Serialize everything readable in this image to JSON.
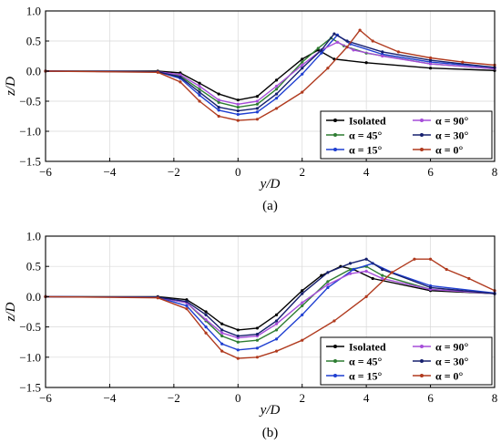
{
  "chart_data": [
    {
      "type": "line",
      "panel_label": "(a)",
      "xlabel": "y/D",
      "ylabel": "z/D",
      "xlim": [
        -6,
        8
      ],
      "ylim": [
        -1.5,
        1.0
      ],
      "xticks": [
        "−6",
        "−4",
        "−2",
        "0",
        "2",
        "4",
        "6",
        "8"
      ],
      "yticks": [
        "1.0",
        "0.5",
        "0.0",
        "−0.5",
        "−1.0",
        "−1.5"
      ],
      "grid": true,
      "legend_position": "bottom-right",
      "legend": [
        "Isolated",
        "α = 45°",
        "α = 15°",
        "α = 90°",
        "α = 30°",
        "α =   0°"
      ],
      "series": [
        {
          "name": "Isolated",
          "color": "#000000",
          "points": [
            [
              -6,
              0
            ],
            [
              -2.5,
              0
            ],
            [
              -1.8,
              -0.03
            ],
            [
              -1.2,
              -0.2
            ],
            [
              -0.6,
              -0.38
            ],
            [
              0,
              -0.48
            ],
            [
              0.6,
              -0.42
            ],
            [
              1.2,
              -0.15
            ],
            [
              2.0,
              0.2
            ],
            [
              2.5,
              0.35
            ],
            [
              3.0,
              0.2
            ],
            [
              4.0,
              0.14
            ],
            [
              6.0,
              0.05
            ],
            [
              8.0,
              0.01
            ]
          ]
        },
        {
          "name": "α = 45°",
          "color": "#2e7d32",
          "points": [
            [
              -6,
              0
            ],
            [
              -2.5,
              -0.01
            ],
            [
              -1.8,
              -0.08
            ],
            [
              -1.2,
              -0.3
            ],
            [
              -0.6,
              -0.52
            ],
            [
              0,
              -0.6
            ],
            [
              0.6,
              -0.55
            ],
            [
              1.2,
              -0.3
            ],
            [
              2.0,
              0.15
            ],
            [
              2.5,
              0.38
            ],
            [
              2.9,
              0.55
            ],
            [
              3.3,
              0.42
            ],
            [
              4.0,
              0.3
            ],
            [
              6.0,
              0.12
            ],
            [
              8.0,
              0.04
            ]
          ]
        },
        {
          "name": "α = 15°",
          "color": "#1f3fd1",
          "points": [
            [
              -6,
              0
            ],
            [
              -2.5,
              -0.01
            ],
            [
              -1.8,
              -0.12
            ],
            [
              -1.2,
              -0.4
            ],
            [
              -0.6,
              -0.65
            ],
            [
              0,
              -0.72
            ],
            [
              0.6,
              -0.68
            ],
            [
              1.2,
              -0.45
            ],
            [
              2.0,
              -0.05
            ],
            [
              2.6,
              0.3
            ],
            [
              3.1,
              0.6
            ],
            [
              3.5,
              0.45
            ],
            [
              4.5,
              0.28
            ],
            [
              6.0,
              0.15
            ],
            [
              8.0,
              0.06
            ]
          ]
        },
        {
          "name": "α = 90°",
          "color": "#a64dd9",
          "points": [
            [
              -6,
              0
            ],
            [
              -2.5,
              -0.01
            ],
            [
              -1.8,
              -0.06
            ],
            [
              -1.2,
              -0.25
            ],
            [
              -0.6,
              -0.48
            ],
            [
              0,
              -0.55
            ],
            [
              0.6,
              -0.5
            ],
            [
              1.2,
              -0.25
            ],
            [
              2.0,
              0.1
            ],
            [
              2.6,
              0.35
            ],
            [
              3.1,
              0.48
            ],
            [
              3.6,
              0.35
            ],
            [
              4.5,
              0.25
            ],
            [
              6.0,
              0.12
            ],
            [
              8.0,
              0.04
            ]
          ]
        },
        {
          "name": "α = 30°",
          "color": "#16206e",
          "points": [
            [
              -6,
              0
            ],
            [
              -2.5,
              -0.01
            ],
            [
              -1.8,
              -0.1
            ],
            [
              -1.2,
              -0.35
            ],
            [
              -0.6,
              -0.6
            ],
            [
              0,
              -0.66
            ],
            [
              0.6,
              -0.62
            ],
            [
              1.2,
              -0.38
            ],
            [
              2.0,
              0.05
            ],
            [
              2.6,
              0.35
            ],
            [
              3.0,
              0.62
            ],
            [
              3.4,
              0.5
            ],
            [
              4.5,
              0.32
            ],
            [
              6.0,
              0.18
            ],
            [
              8.0,
              0.06
            ]
          ]
        },
        {
          "name": "α =   0°",
          "color": "#b03a1e",
          "points": [
            [
              -6,
              0
            ],
            [
              -2.5,
              -0.02
            ],
            [
              -1.8,
              -0.18
            ],
            [
              -1.2,
              -0.5
            ],
            [
              -0.6,
              -0.75
            ],
            [
              0,
              -0.82
            ],
            [
              0.6,
              -0.8
            ],
            [
              1.2,
              -0.62
            ],
            [
              2.0,
              -0.35
            ],
            [
              2.8,
              0.05
            ],
            [
              3.4,
              0.4
            ],
            [
              3.8,
              0.68
            ],
            [
              4.2,
              0.5
            ],
            [
              5.0,
              0.32
            ],
            [
              6.0,
              0.22
            ],
            [
              7.0,
              0.15
            ],
            [
              8.0,
              0.1
            ]
          ]
        }
      ]
    },
    {
      "type": "line",
      "panel_label": "(b)",
      "xlabel": "y/D",
      "ylabel": "z/D",
      "xlim": [
        -6,
        8
      ],
      "ylim": [
        -1.5,
        1.0
      ],
      "xticks": [
        "−6",
        "−4",
        "−2",
        "0",
        "2",
        "4",
        "6",
        "8"
      ],
      "yticks": [
        "1.0",
        "0.5",
        "0.0",
        "−0.5",
        "−1.0",
        "−1.5"
      ],
      "grid": true,
      "legend_position": "bottom-right",
      "legend": [
        "Isolated",
        "α = 45°",
        "α = 15°",
        "α = 90°",
        "α = 30°",
        "α =   0°"
      ],
      "series": [
        {
          "name": "Isolated",
          "color": "#000000",
          "points": [
            [
              -6,
              0
            ],
            [
              -2.5,
              0
            ],
            [
              -1.6,
              -0.05
            ],
            [
              -1.0,
              -0.25
            ],
            [
              -0.5,
              -0.45
            ],
            [
              0,
              -0.55
            ],
            [
              0.6,
              -0.52
            ],
            [
              1.2,
              -0.3
            ],
            [
              2.0,
              0.1
            ],
            [
              2.6,
              0.35
            ],
            [
              3.2,
              0.5
            ],
            [
              3.6,
              0.45
            ],
            [
              4.2,
              0.3
            ],
            [
              6.0,
              0.1
            ],
            [
              8.0,
              0.05
            ]
          ]
        },
        {
          "name": "α = 45°",
          "color": "#2e7d32",
          "points": [
            [
              -6,
              0
            ],
            [
              -2.5,
              -0.01
            ],
            [
              -1.6,
              -0.1
            ],
            [
              -1.0,
              -0.4
            ],
            [
              -0.5,
              -0.65
            ],
            [
              0,
              -0.75
            ],
            [
              0.6,
              -0.72
            ],
            [
              1.2,
              -0.55
            ],
            [
              2.0,
              -0.15
            ],
            [
              2.8,
              0.25
            ],
            [
              3.5,
              0.45
            ],
            [
              4.0,
              0.5
            ],
            [
              4.5,
              0.35
            ],
            [
              6.0,
              0.12
            ],
            [
              8.0,
              0.05
            ]
          ]
        },
        {
          "name": "α = 15°",
          "color": "#1f3fd1",
          "points": [
            [
              -6,
              0
            ],
            [
              -2.5,
              -0.01
            ],
            [
              -1.6,
              -0.15
            ],
            [
              -1.0,
              -0.5
            ],
            [
              -0.5,
              -0.78
            ],
            [
              0,
              -0.88
            ],
            [
              0.6,
              -0.85
            ],
            [
              1.2,
              -0.7
            ],
            [
              2.0,
              -0.3
            ],
            [
              2.8,
              0.15
            ],
            [
              3.6,
              0.45
            ],
            [
              4.2,
              0.55
            ],
            [
              4.8,
              0.4
            ],
            [
              6.0,
              0.18
            ],
            [
              8.0,
              0.06
            ]
          ]
        },
        {
          "name": "α = 90°",
          "color": "#a64dd9",
          "points": [
            [
              -6,
              0
            ],
            [
              -2.5,
              -0.01
            ],
            [
              -1.6,
              -0.1
            ],
            [
              -1.0,
              -0.38
            ],
            [
              -0.5,
              -0.6
            ],
            [
              0,
              -0.68
            ],
            [
              0.6,
              -0.65
            ],
            [
              1.2,
              -0.45
            ],
            [
              2.0,
              -0.1
            ],
            [
              2.8,
              0.2
            ],
            [
              3.5,
              0.38
            ],
            [
              4.0,
              0.42
            ],
            [
              4.5,
              0.3
            ],
            [
              6.0,
              0.12
            ],
            [
              8.0,
              0.05
            ]
          ]
        },
        {
          "name": "α = 30°",
          "color": "#16206e",
          "points": [
            [
              -6,
              0
            ],
            [
              -2.5,
              -0.01
            ],
            [
              -1.6,
              -0.08
            ],
            [
              -1.0,
              -0.3
            ],
            [
              -0.5,
              -0.55
            ],
            [
              0,
              -0.65
            ],
            [
              0.6,
              -0.62
            ],
            [
              1.2,
              -0.4
            ],
            [
              2.0,
              0.05
            ],
            [
              2.8,
              0.4
            ],
            [
              3.5,
              0.55
            ],
            [
              4.0,
              0.62
            ],
            [
              4.5,
              0.45
            ],
            [
              6.0,
              0.15
            ],
            [
              8.0,
              0.05
            ]
          ]
        },
        {
          "name": "α =   0°",
          "color": "#b03a1e",
          "points": [
            [
              -6,
              0
            ],
            [
              -2.5,
              -0.02
            ],
            [
              -1.6,
              -0.2
            ],
            [
              -1.0,
              -0.6
            ],
            [
              -0.5,
              -0.9
            ],
            [
              0,
              -1.02
            ],
            [
              0.6,
              -1.0
            ],
            [
              1.2,
              -0.9
            ],
            [
              2.0,
              -0.72
            ],
            [
              3.0,
              -0.4
            ],
            [
              4.0,
              0.0
            ],
            [
              4.8,
              0.4
            ],
            [
              5.5,
              0.62
            ],
            [
              6.0,
              0.62
            ],
            [
              6.5,
              0.45
            ],
            [
              7.2,
              0.3
            ],
            [
              8.0,
              0.1
            ]
          ]
        }
      ]
    }
  ]
}
